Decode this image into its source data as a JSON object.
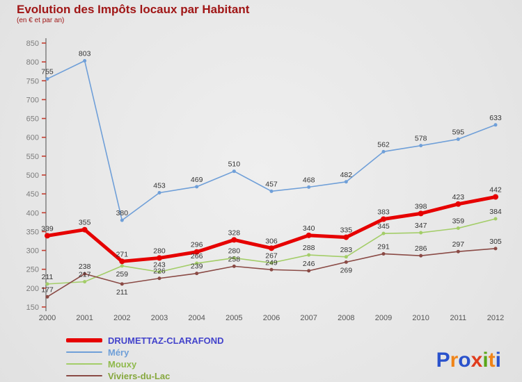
{
  "header": {
    "title": "Evolution des Impôts locaux par Habitant",
    "subtitle": "(en € et par an)",
    "title_color": "#a01616"
  },
  "chart_data": {
    "type": "line",
    "x": [
      2000,
      2001,
      2002,
      2003,
      2004,
      2005,
      2006,
      2007,
      2008,
      2009,
      2010,
      2011,
      2012
    ],
    "ylim": [
      150,
      850
    ],
    "ytick_step": 50,
    "grid": false,
    "legend_position": "bottom-left",
    "series": [
      {
        "name": "DRUMETTAZ-CLARAFOND",
        "color": "#e60000",
        "width": 5,
        "legend_text_color": "#4343cb",
        "values": [
          339,
          355,
          271,
          280,
          296,
          328,
          306,
          340,
          335,
          383,
          398,
          423,
          442
        ]
      },
      {
        "name": "Méry",
        "color": "#6f9fd8",
        "width": 1.6,
        "legend_text_color": "#6f9fd8",
        "values": [
          755,
          803,
          380,
          453,
          469,
          510,
          457,
          468,
          482,
          562,
          578,
          595,
          633
        ]
      },
      {
        "name": "Mouxy",
        "color": "#a3cd68",
        "width": 1.6,
        "legend_text_color": "#8fb94c",
        "values": [
          211,
          217,
          259,
          243,
          266,
          280,
          267,
          288,
          283,
          345,
          347,
          359,
          384
        ]
      },
      {
        "name": "Viviers-du-Lac",
        "color": "#8a4a45",
        "width": 1.6,
        "legend_text_color": "#86a83e",
        "values": [
          177,
          238,
          211,
          226,
          239,
          258,
          249,
          246,
          269,
          291,
          286,
          297,
          305
        ]
      }
    ],
    "value_label_color": "#333333",
    "axis_color": "#666666",
    "tick_color": "#c33b2e",
    "ytick_label_color": "#7c7c7c",
    "xtick_label_color": "#555555"
  },
  "logo": {
    "text": "Proxiti",
    "letters": [
      {
        "ch": "P",
        "color": "#2a52cc"
      },
      {
        "ch": "r",
        "color": "#f08418"
      },
      {
        "ch": "o",
        "color": "#2a52cc"
      },
      {
        "ch": "x",
        "color": "#e03c1e"
      },
      {
        "ch": "i",
        "color": "#59a618"
      },
      {
        "ch": "t",
        "color": "#f08418"
      },
      {
        "ch": "i",
        "color": "#2a52cc"
      }
    ]
  }
}
